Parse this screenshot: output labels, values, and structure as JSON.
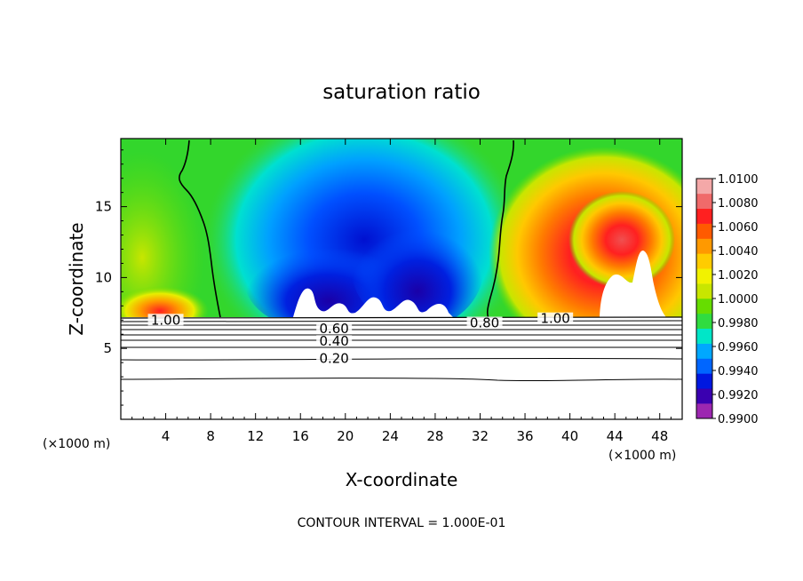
{
  "chart_data": {
    "type": "heatmap",
    "title": "saturation ratio",
    "xlabel": "X-coordinate",
    "ylabel": "Z-coordinate",
    "x_unit": "(×1000 m)",
    "z_unit": "(×1000 m)",
    "xlim": [
      0,
      50
    ],
    "ylim": [
      0,
      19.8
    ],
    "x_ticks": [
      "4",
      "8",
      "12",
      "16",
      "20",
      "24",
      "28",
      "32",
      "36",
      "40",
      "44",
      "48"
    ],
    "y_ticks": [
      "5",
      "10",
      "15"
    ],
    "colorbar": {
      "labels": [
        "1.0100",
        "1.0080",
        "1.0060",
        "1.0040",
        "1.0020",
        "1.0000",
        "0.9980",
        "0.9960",
        "0.9940",
        "0.9920",
        "0.9900"
      ],
      "colors": [
        "#9c27b0",
        "#3a00b0",
        "#0018e0",
        "#0066ff",
        "#00a8ff",
        "#00e6c8",
        "#30dc40",
        "#66dd00",
        "#c8e600",
        "#f2f200",
        "#ffcc00",
        "#ff9900",
        "#ff5a00",
        "#ff2020",
        "#f06a6a",
        "#f4a8a8"
      ]
    },
    "contour_labels": [
      {
        "text": "1.00",
        "x": 4.0,
        "z": 7.0
      },
      {
        "text": "0.80",
        "x": 32.4,
        "z": 6.8
      },
      {
        "text": "1.00",
        "x": 38.7,
        "z": 7.1
      },
      {
        "text": "0.60",
        "x": 19.0,
        "z": 6.4
      },
      {
        "text": "0.40",
        "x": 19.0,
        "z": 5.5
      },
      {
        "text": "0.20",
        "x": 19.0,
        "z": 4.3
      }
    ],
    "contour_interval_text": "CONTOUR INTERVAL = 1.000E-01"
  }
}
